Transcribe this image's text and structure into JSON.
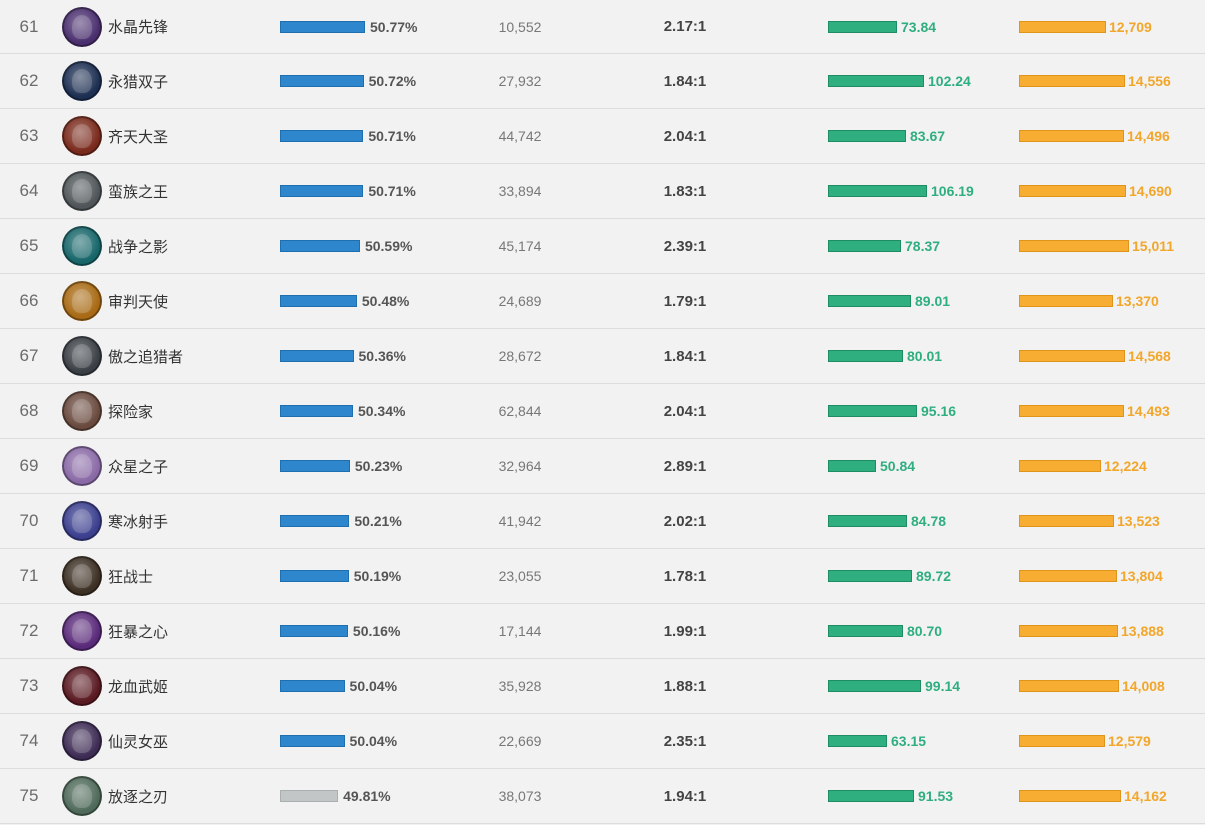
{
  "rows": [
    {
      "rank": "61",
      "name": "水晶先锋",
      "win_rate": "50.77%",
      "win_value": 50.77,
      "games": "10,552",
      "kda": "2.17:1",
      "damage": "73.84",
      "damage_value": 73.84,
      "gold": "12,709",
      "gold_value": 12709,
      "avatar_color": "#4a2f6e"
    },
    {
      "rank": "62",
      "name": "永猎双子",
      "win_rate": "50.72%",
      "win_value": 50.72,
      "games": "27,932",
      "kda": "1.84:1",
      "damage": "102.24",
      "damage_value": 102.24,
      "gold": "14,556",
      "gold_value": 14556,
      "avatar_color": "#1d2f52"
    },
    {
      "rank": "63",
      "name": "齐天大圣",
      "win_rate": "50.71%",
      "win_value": 50.71,
      "games": "44,742",
      "kda": "2.04:1",
      "damage": "83.67",
      "damage_value": 83.67,
      "gold": "14,496",
      "gold_value": 14496,
      "avatar_color": "#7a2a1c"
    },
    {
      "rank": "64",
      "name": "蛮族之王",
      "win_rate": "50.71%",
      "win_value": 50.71,
      "games": "33,894",
      "kda": "1.83:1",
      "damage": "106.19",
      "damage_value": 106.19,
      "gold": "14,690",
      "gold_value": 14690,
      "avatar_color": "#4f5558"
    },
    {
      "rank": "65",
      "name": "战争之影",
      "win_rate": "50.59%",
      "win_value": 50.59,
      "games": "45,174",
      "kda": "2.39:1",
      "damage": "78.37",
      "damage_value": 78.37,
      "gold": "15,011",
      "gold_value": 15011,
      "avatar_color": "#17666a"
    },
    {
      "rank": "66",
      "name": "审判天使",
      "win_rate": "50.48%",
      "win_value": 50.48,
      "games": "24,689",
      "kda": "1.79:1",
      "damage": "89.01",
      "damage_value": 89.01,
      "gold": "13,370",
      "gold_value": 13370,
      "avatar_color": "#a86a14"
    },
    {
      "rank": "67",
      "name": "傲之追猎者",
      "win_rate": "50.36%",
      "win_value": 50.36,
      "games": "28,672",
      "kda": "1.84:1",
      "damage": "80.01",
      "damage_value": 80.01,
      "gold": "14,568",
      "gold_value": 14568,
      "avatar_color": "#3a3f45"
    },
    {
      "rank": "68",
      "name": "探险家",
      "win_rate": "50.34%",
      "win_value": 50.34,
      "games": "62,844",
      "kda": "2.04:1",
      "damage": "95.16",
      "damage_value": 95.16,
      "gold": "14,493",
      "gold_value": 14493,
      "avatar_color": "#6a4a3e"
    },
    {
      "rank": "69",
      "name": "众星之子",
      "win_rate": "50.23%",
      "win_value": 50.23,
      "games": "32,964",
      "kda": "2.89:1",
      "damage": "50.84",
      "damage_value": 50.84,
      "gold": "12,224",
      "gold_value": 12224,
      "avatar_color": "#8a6aa6"
    },
    {
      "rank": "70",
      "name": "寒冰射手",
      "win_rate": "50.21%",
      "win_value": 50.21,
      "games": "41,942",
      "kda": "2.02:1",
      "damage": "84.78",
      "damage_value": 84.78,
      "gold": "13,523",
      "gold_value": 13523,
      "avatar_color": "#3b3f8e"
    },
    {
      "rank": "71",
      "name": "狂战士",
      "win_rate": "50.19%",
      "win_value": 50.19,
      "games": "23,055",
      "kda": "1.78:1",
      "damage": "89.72",
      "damage_value": 89.72,
      "gold": "13,804",
      "gold_value": 13804,
      "avatar_color": "#3d3024"
    },
    {
      "rank": "72",
      "name": "狂暴之心",
      "win_rate": "50.16%",
      "win_value": 50.16,
      "games": "17,144",
      "kda": "1.99:1",
      "damage": "80.70",
      "damage_value": 80.7,
      "gold": "13,888",
      "gold_value": 13888,
      "avatar_color": "#5a2a7a"
    },
    {
      "rank": "73",
      "name": "龙血武姬",
      "win_rate": "50.04%",
      "win_value": 50.04,
      "games": "35,928",
      "kda": "1.88:1",
      "damage": "99.14",
      "damage_value": 99.14,
      "gold": "14,008",
      "gold_value": 14008,
      "avatar_color": "#5a1a22"
    },
    {
      "rank": "74",
      "name": "仙灵女巫",
      "win_rate": "50.04%",
      "win_value": 50.04,
      "games": "22,669",
      "kda": "2.35:1",
      "damage": "63.15",
      "damage_value": 63.15,
      "gold": "12,579",
      "gold_value": 12579,
      "avatar_color": "#3e2c55"
    },
    {
      "rank": "75",
      "name": "放逐之刃",
      "win_rate": "49.81%",
      "win_value": 49.81,
      "games": "38,073",
      "kda": "1.94:1",
      "damage": "91.53",
      "damage_value": 91.53,
      "gold": "14,162",
      "gold_value": 14162,
      "avatar_color": "#4f6a5a"
    }
  ]
}
